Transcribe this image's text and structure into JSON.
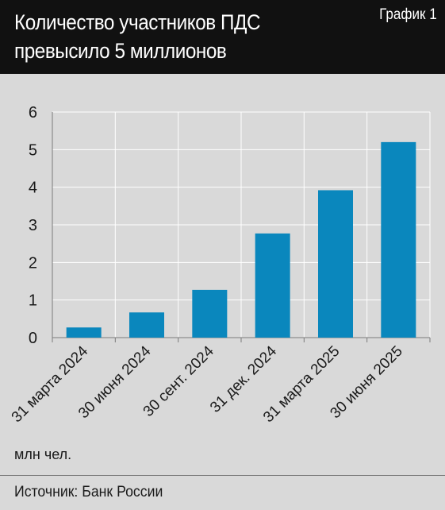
{
  "header": {
    "title_line1": "Количество участников ПДС",
    "title_line2": "превысило 5 миллионов",
    "chart_label": "График 1"
  },
  "footer": {
    "unit": "млн чел.",
    "source": "Источник: Банк России"
  },
  "colors": {
    "bar": "#0a87bd",
    "grid": "#ffffff",
    "axis": "#7a7a7a",
    "background": "#d9d9d9",
    "header_bg": "#111111"
  },
  "chart_data": {
    "type": "bar",
    "title": "Количество участников ПДС превысило 5 миллионов",
    "categories": [
      "31 марта 2024",
      "30 июня 2024",
      "30 сент. 2024",
      "31 дек. 2024",
      "31 марта 2025",
      "30 июня 2025"
    ],
    "values": [
      0.27,
      0.67,
      1.27,
      2.77,
      3.92,
      5.2
    ],
    "ylabel": "млн чел.",
    "ylim": [
      0,
      6
    ],
    "yticks": [
      0,
      1,
      2,
      3,
      4,
      5,
      6
    ],
    "grid": true
  }
}
